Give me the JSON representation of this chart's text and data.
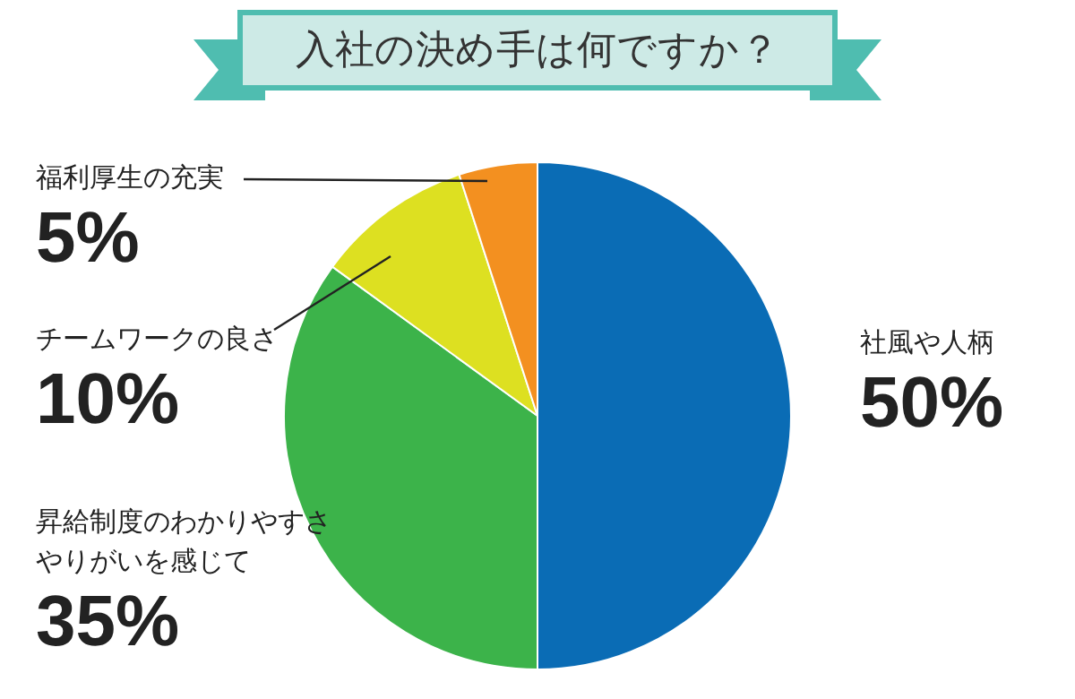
{
  "chart_data": {
    "type": "pie",
    "title": "入社の決め手は何ですか？",
    "categories": [
      "社風や人柄",
      "昇給制度のわかりやすさやりがいを感じて",
      "チームワークの良さ",
      "福利厚生の充実"
    ],
    "values": [
      50,
      35,
      10,
      5
    ],
    "colors": [
      "#0a6cb5",
      "#3cb34a",
      "#dde021",
      "#f39020"
    ],
    "value_labels": [
      "50%",
      "35%",
      "10%",
      "5%"
    ],
    "legend": false
  }
}
